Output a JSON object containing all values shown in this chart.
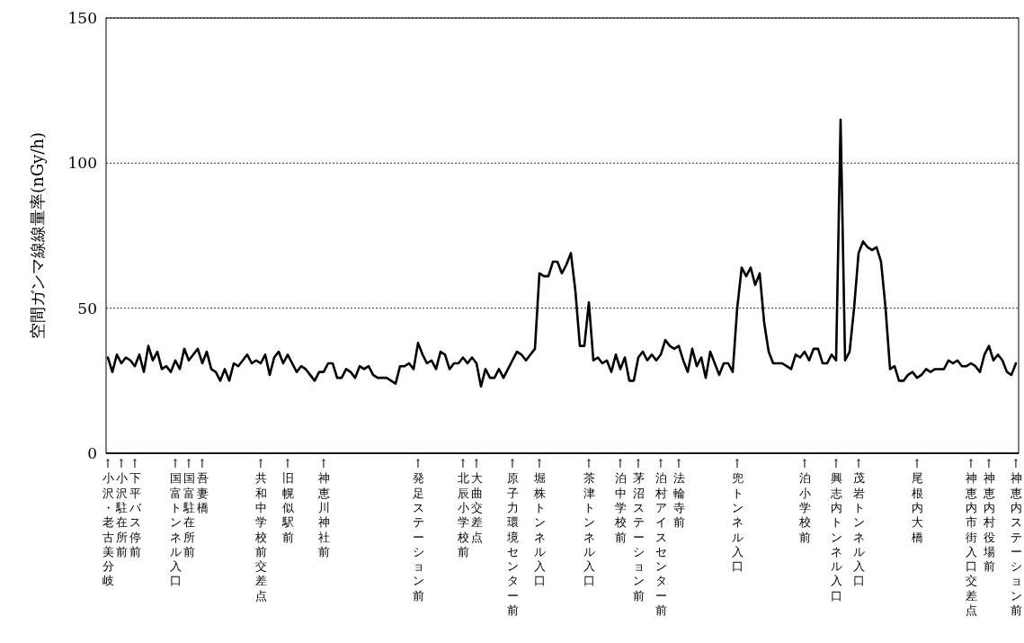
{
  "chart_data": {
    "type": "line",
    "ylabel": "空間ガンマ線線量率(nGy/h)",
    "ylim": [
      0,
      150
    ],
    "yticks": [
      0,
      50,
      100,
      150
    ],
    "grid": "y",
    "marker": "none",
    "line_style": "solid",
    "categories": [
      "↑小沢・老古美分岐",
      null,
      null,
      "↑小沢駐在所前",
      null,
      null,
      "↑下平バス停前",
      null,
      null,
      null,
      null,
      null,
      null,
      null,
      null,
      "↑国富トンネル入口",
      null,
      null,
      "↑国富駐在所前",
      null,
      null,
      "↑吾妻橋",
      null,
      null,
      null,
      null,
      null,
      null,
      null,
      null,
      null,
      null,
      null,
      null,
      "↑共和中学校前交差点",
      null,
      null,
      null,
      null,
      null,
      "↑旧幌似駅前",
      null,
      null,
      null,
      null,
      null,
      null,
      null,
      "↑神恵川神社前",
      null,
      null,
      null,
      null,
      null,
      null,
      null,
      null,
      null,
      null,
      null,
      null,
      null,
      null,
      null,
      null,
      null,
      null,
      null,
      null,
      "↑発足ステーション前",
      null,
      null,
      null,
      null,
      null,
      null,
      null,
      null,
      null,
      "↑北辰小学校前",
      null,
      null,
      "↑大曲交差点",
      null,
      null,
      null,
      null,
      null,
      null,
      null,
      "↑原子力環境センター前",
      null,
      null,
      null,
      null,
      null,
      "↑堀株トンネル入口",
      null,
      null,
      null,
      null,
      null,
      null,
      null,
      null,
      null,
      null,
      "↑茶津トンネル入口",
      null,
      null,
      null,
      null,
      null,
      null,
      "↑泊中学校前",
      null,
      null,
      null,
      "↑茅沼ステーション前",
      null,
      null,
      null,
      null,
      "↑泊村アイスセンター前",
      null,
      null,
      null,
      "↑法輪寺前",
      null,
      null,
      null,
      null,
      null,
      null,
      null,
      null,
      null,
      null,
      null,
      null,
      "↑兜トンネル入口",
      null,
      null,
      null,
      null,
      null,
      null,
      null,
      null,
      null,
      null,
      null,
      null,
      null,
      null,
      "↑泊小学校前",
      null,
      null,
      null,
      null,
      null,
      null,
      "↑興志内トンネル入口",
      null,
      null,
      null,
      null,
      "↑茂岩トンネル入口",
      null,
      null,
      null,
      null,
      null,
      null,
      null,
      null,
      null,
      null,
      null,
      null,
      "↑尾根内大橋",
      null,
      null,
      null,
      null,
      null,
      null,
      null,
      null,
      null,
      null,
      null,
      "↑神恵内市街入口交差点",
      null,
      null,
      null,
      "↑神恵内村役場前",
      null,
      null,
      null,
      null,
      null,
      "↑神恵内ステーション前"
    ],
    "series": [
      {
        "color": "#000000",
        "values": [
          33,
          28,
          34,
          31,
          33,
          32,
          30,
          34,
          28,
          37,
          32,
          35,
          29,
          30,
          28,
          32,
          29,
          36,
          32,
          34,
          36,
          31,
          35,
          29,
          28,
          25,
          29,
          25,
          31,
          30,
          32,
          34,
          31,
          32,
          31,
          34,
          27,
          33,
          35,
          31,
          34,
          31,
          28,
          30,
          29,
          27,
          25,
          28,
          28,
          31,
          31,
          26,
          26,
          29,
          28,
          26,
          30,
          29,
          30,
          27,
          26,
          26,
          26,
          25,
          24,
          30,
          30,
          31,
          29,
          38,
          34,
          31,
          32,
          29,
          35,
          34,
          29,
          31,
          31,
          33,
          31,
          33,
          31,
          23,
          29,
          26,
          26,
          29,
          26,
          29,
          32,
          35,
          34,
          32,
          34,
          36,
          62,
          61,
          61,
          66,
          66,
          62,
          65,
          69,
          56,
          37,
          37,
          52,
          32,
          33,
          31,
          32,
          28,
          34,
          29,
          33,
          25,
          25,
          33,
          35,
          32,
          34,
          32,
          34,
          39,
          37,
          36,
          37,
          32,
          28,
          36,
          30,
          33,
          26,
          35,
          31,
          27,
          31,
          31,
          28,
          50,
          64,
          61,
          64,
          58,
          62,
          45,
          35,
          31,
          31,
          31,
          30,
          29,
          34,
          33,
          35,
          32,
          36,
          36,
          31,
          31,
          34,
          32,
          115,
          32,
          35,
          50,
          69,
          73,
          71,
          70,
          71,
          66,
          50,
          29,
          30,
          25,
          25,
          27,
          28,
          26,
          27,
          29,
          28,
          29,
          29,
          29,
          32,
          31,
          32,
          30,
          30,
          31,
          30,
          28,
          34,
          37,
          32,
          34,
          32,
          28,
          27,
          31
        ]
      }
    ]
  }
}
